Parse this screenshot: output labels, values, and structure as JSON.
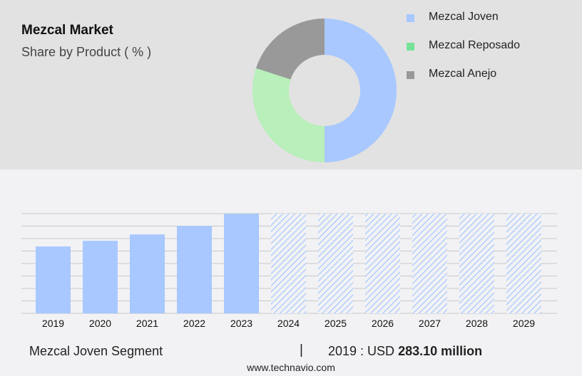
{
  "title": "Mezcal Market",
  "subtitle": "Share by Product ( % )",
  "colors": {
    "joven": "#a8c8ff",
    "reposado": "#b8efba",
    "anejo": "#999999",
    "legend_reposado": "#77e39a"
  },
  "chart_data": [
    {
      "type": "pie",
      "variant": "donut",
      "slices": [
        {
          "name": "Mezcal Joven",
          "value": 50,
          "color": "#a8c8ff"
        },
        {
          "name": "Mezcal Reposado",
          "value": 30,
          "color": "#b8efba"
        },
        {
          "name": "Mezcal Anejo",
          "value": 20,
          "color": "#999999"
        }
      ],
      "legend": [
        {
          "label": "Mezcal Joven",
          "color": "#a8c8ff"
        },
        {
          "label": "Mezcal Reposado",
          "color": "#77e39a"
        },
        {
          "label": "Mezcal Anejo",
          "color": "#999999"
        }
      ],
      "legend_position": "right"
    },
    {
      "type": "bar",
      "categories": [
        "2019",
        "2020",
        "2021",
        "2022",
        "2023",
        "2024",
        "2025",
        "2026",
        "2027",
        "2028",
        "2029"
      ],
      "values": [
        283.1,
        307,
        334,
        370,
        422,
        null,
        null,
        null,
        null,
        null,
        null
      ],
      "forecast_categories": [
        "2024",
        "2025",
        "2026",
        "2027",
        "2028",
        "2029"
      ],
      "forecast_style": "hatched",
      "ylim": [
        0,
        422
      ],
      "grid": true,
      "color": "#a8c8ff"
    }
  ],
  "footer": {
    "segment": "Mezcal Joven Segment",
    "separator": "|",
    "year_label": "2019 : USD",
    "value": "283.10 million"
  },
  "site": "www.technavio.com"
}
